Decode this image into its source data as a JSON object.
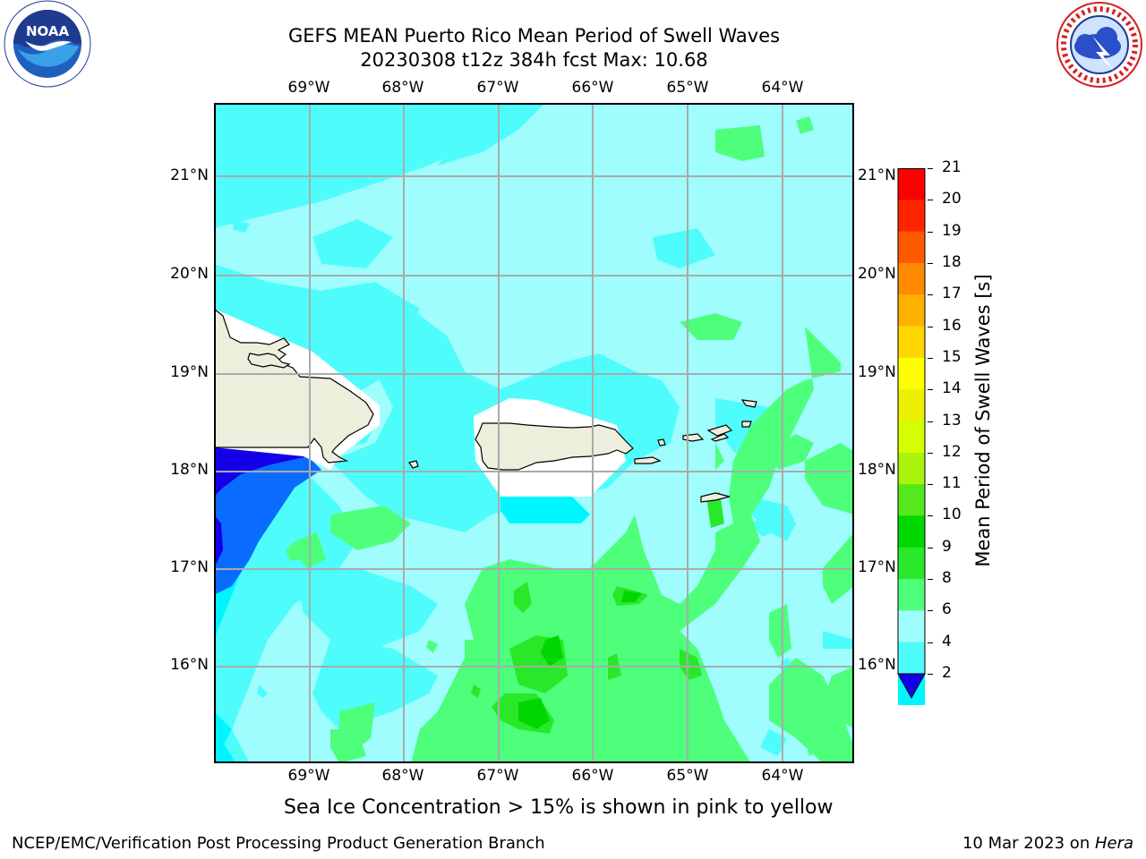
{
  "header": {
    "title_line1": "GEFS MEAN Puerto Rico Mean Period of Swell Waves",
    "title_line2": "20230308 t12z 384h fcst   Max: 10.68"
  },
  "logos": {
    "left": {
      "icon": "noaa-logo",
      "text": "NOAA",
      "ring_text": "NATIONAL OCEANIC AND ATMOSPHERIC ADMINISTRATION · U.S. DEPARTMENT OF COMMERCE"
    },
    "right": {
      "icon": "nws-logo",
      "ring_text": "NATIONAL WEATHER SERVICE"
    }
  },
  "map": {
    "lon_labels": [
      "69°W",
      "68°W",
      "67°W",
      "66°W",
      "65°W",
      "64°W"
    ],
    "lat_labels": [
      "21°N",
      "20°N",
      "19°N",
      "18°N",
      "17°N",
      "16°N"
    ],
    "colors": {
      "sea_light": "#9ffdfd",
      "sea_mid": "#4ffcfc",
      "green_light": "#4eff7c",
      "green_mid": "#29e829",
      "green_dark": "#00d700",
      "blue": "#0a6cff",
      "blue_dark": "#1400e8",
      "land": "#eeeedd",
      "grid": "#aaaaaa"
    }
  },
  "colorbar": {
    "label": "Mean Period of Swell Waves [s]",
    "ticks": [
      "2",
      "4",
      "6",
      "8",
      "9",
      "10",
      "11",
      "12",
      "13",
      "14",
      "15",
      "16",
      "17",
      "18",
      "19",
      "20",
      "21"
    ],
    "colors": [
      "#1400e8",
      "#0a6cff",
      "#00f6ff",
      "#4ffcfc",
      "#9ffdfd",
      "#4eff7c",
      "#29e829",
      "#00d700",
      "#55e81a",
      "#aaf40c",
      "#d4ff00",
      "#ecf000",
      "#ffff00",
      "#ffd700",
      "#ffb100",
      "#ff8a00",
      "#ff5a00",
      "#ff2400",
      "#ff0000"
    ]
  },
  "notes": {
    "sea_ice": "Sea Ice Concentration > 15% is shown in pink to yellow"
  },
  "footer": {
    "left": "NCEP/EMC/Verification Post Processing Product Generation Branch",
    "right_prefix": "10 Mar 2023 on ",
    "right_machine": "Hera"
  }
}
